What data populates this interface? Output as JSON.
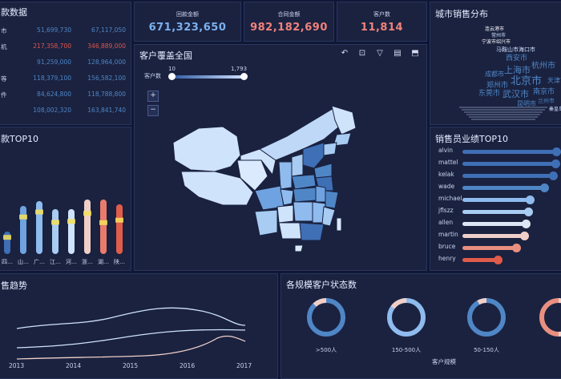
{
  "top_left": {
    "title": "款数据",
    "rows": [
      {
        "label": "市",
        "v1": "51,699,730",
        "v2": "67,117,050",
        "c1": "#4f86c6",
        "c2": "#4f86c6"
      },
      {
        "label": "机",
        "v1": "217,358,700",
        "v2": "346,889,000",
        "c1": "#e0564d",
        "c2": "#e0564d"
      },
      {
        "label": "",
        "v1": "91,259,000",
        "v2": "128,964,000",
        "c1": "#4f86c6",
        "c2": "#4f86c6"
      },
      {
        "label": "等",
        "v1": "118,379,100",
        "v2": "156,582,100",
        "c1": "#4f86c6",
        "c2": "#4f86c6"
      },
      {
        "label": "件",
        "v1": "84,624,800",
        "v2": "118,788,800",
        "c1": "#4f86c6",
        "c2": "#4f86c6"
      },
      {
        "label": "",
        "v1": "108,002,320",
        "v2": "163,841,740",
        "c1": "#4f86c6",
        "c2": "#4f86c6"
      }
    ]
  },
  "kpis": [
    {
      "label": "回款金额",
      "value": "671,323,650",
      "color": "#7bb0ef"
    },
    {
      "label": "合同金额",
      "value": "982,182,690",
      "color": "#f0827b"
    },
    {
      "label": "客户数",
      "value": "11,814",
      "color": "#f0827b"
    }
  ],
  "city_panel": {
    "title": "城市销售分布",
    "words": [
      {
        "t": "连云港市",
        "c": "#ffffff",
        "s": 6
      },
      {
        "t": "常州市",
        "c": "#cfe0ff",
        "s": 6
      },
      {
        "t": "宁波市绍兴市",
        "c": "#ffffff",
        "s": 6
      },
      {
        "t": "马鞍山市海口市",
        "c": "#cfe0ff",
        "s": 7
      },
      {
        "t": "西安市",
        "c": "#4f86c6",
        "s": 9
      },
      {
        "t": "杭州市",
        "c": "#4f86c6",
        "s": 10
      },
      {
        "t": "上海市",
        "c": "#4f86c6",
        "s": 11
      },
      {
        "t": "北京市",
        "c": "#4f86c6",
        "s": 13
      },
      {
        "t": "成都市",
        "c": "#4f86c6",
        "s": 8
      },
      {
        "t": "郑州市",
        "c": "#4f86c6",
        "s": 9
      },
      {
        "t": "武汉市",
        "c": "#4f86c6",
        "s": 11
      },
      {
        "t": "南京市",
        "c": "#4f86c6",
        "s": 9
      },
      {
        "t": "东莞市",
        "c": "#4f86c6",
        "s": 9
      },
      {
        "t": "天津市",
        "c": "#4f86c6",
        "s": 8
      },
      {
        "t": "昆明市",
        "c": "#4f86c6",
        "s": 8
      },
      {
        "t": "兰州市",
        "c": "#4f86c6",
        "s": 7
      },
      {
        "t": "秦皇岛市",
        "c": "#cfe0ff",
        "s": 6
      }
    ]
  },
  "map_panel": {
    "title": "客户覆盖全国",
    "range_label": "客户数",
    "range_min": "10",
    "range_max": "1,793",
    "zoom_in": "+",
    "zoom_out": "−",
    "tool_icons": [
      "refresh-icon",
      "zoom-region-icon",
      "filter-icon",
      "data-view-icon",
      "save-image-icon"
    ]
  },
  "bar_panel": {
    "title": "款TOP10",
    "categories": [
      "四",
      "山",
      "广",
      "江",
      "河",
      "浙",
      "湖",
      "陕"
    ],
    "bars": [
      {
        "h": 0.28,
        "color": "#3f6fb5",
        "hl": 0.85
      },
      {
        "h": 0.6,
        "color": "#6fa2e0",
        "hl": 0.82
      },
      {
        "h": 0.66,
        "color": "#8fbbee",
        "hl": 0.84
      },
      {
        "h": 0.56,
        "color": "#a8ccf2",
        "hl": 0.76
      },
      {
        "h": 0.56,
        "color": "#cfe3fb",
        "hl": 0.78
      },
      {
        "h": 0.68,
        "color": "#f0cfc9",
        "hl": 0.79
      },
      {
        "h": 0.68,
        "color": "#e87b6c",
        "hl": 0.62
      },
      {
        "h": 0.62,
        "color": "#e05c4a",
        "hl": 0.73
      }
    ]
  },
  "sales_panel": {
    "title": "销售员业绩TOP10",
    "sellers": [
      {
        "name": "alvin",
        "value": 1.0,
        "color": "#3f6fb5"
      },
      {
        "name": "mattel",
        "value": 0.99,
        "color": "#3f6fb5"
      },
      {
        "name": "kelak",
        "value": 0.97,
        "color": "#3f6fb5"
      },
      {
        "name": "wade",
        "value": 0.87,
        "color": "#4f86c6"
      },
      {
        "name": "michael",
        "value": 0.72,
        "color": "#8fbbee"
      },
      {
        "name": "jflszz",
        "value": 0.7,
        "color": "#a8ccf2"
      },
      {
        "name": "allen",
        "value": 0.68,
        "color": "#dde6f4"
      },
      {
        "name": "martin",
        "value": 0.66,
        "color": "#f0cfc9"
      },
      {
        "name": "bruce",
        "value": 0.58,
        "color": "#e88f80"
      },
      {
        "name": "henry",
        "value": 0.38,
        "color": "#e05c4a"
      }
    ]
  },
  "trend_panel": {
    "title": "售趋势",
    "years": [
      "2013",
      "2014",
      "2015",
      "2016",
      "2017"
    ]
  },
  "status_panel": {
    "title": "各规模客户状态数",
    "xlabel": "客户规模",
    "groups": [
      {
        "label": ">500人",
        "main": 0.88,
        "accent": 0.12,
        "main_color": "#4f86c6",
        "accent_color": "#f0cfc9"
      },
      {
        "label": "150-500人",
        "main": 0.85,
        "accent": 0.15,
        "main_color": "#8fbbee",
        "accent_color": "#f0cfc9"
      },
      {
        "label": "50-150人",
        "main": 0.92,
        "accent": 0.08,
        "main_color": "#4f86c6",
        "accent_color": "#f0cfc9"
      },
      {
        "label": "",
        "main": 0.5,
        "accent": 0.5,
        "main_color": "#f0cfc9",
        "accent_color": "#e88f80"
      }
    ]
  },
  "colors": {
    "bg": "#0f1733",
    "panel": "#1a2240",
    "accent_blue": "#4f86c6",
    "accent_red": "#e0564d"
  }
}
